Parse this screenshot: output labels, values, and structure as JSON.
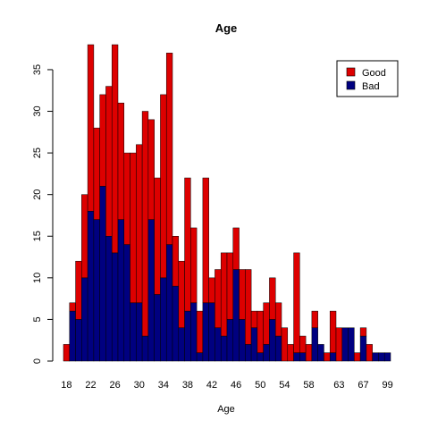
{
  "chart_data": {
    "type": "bar",
    "stacked": true,
    "title": "Age",
    "xlabel": "Age",
    "ylabel": "",
    "ylim": [
      0,
      38
    ],
    "y_ticks": [
      0,
      5,
      10,
      15,
      20,
      25,
      30,
      35
    ],
    "x_tick_labels": [
      "18",
      "22",
      "26",
      "30",
      "34",
      "38",
      "42",
      "46",
      "50",
      "54",
      "58",
      "63",
      "67",
      "99"
    ],
    "categories": [
      "18",
      "19",
      "20",
      "21",
      "22",
      "23",
      "24",
      "25",
      "26",
      "27",
      "28",
      "29",
      "30",
      "31",
      "32",
      "33",
      "34",
      "35",
      "36",
      "37",
      "38",
      "39",
      "40",
      "41",
      "42",
      "43",
      "44",
      "45",
      "46",
      "47",
      "48",
      "49",
      "50",
      "51",
      "52",
      "53",
      "54",
      "55",
      "56",
      "57",
      "58",
      "59",
      "60",
      "61",
      "62",
      "63",
      "64",
      "65",
      "66",
      "67",
      "68",
      "69",
      "70",
      "99"
    ],
    "legend_position": "top-right",
    "series": [
      {
        "name": "Bad",
        "color": "#000080",
        "values": [
          0,
          6,
          5,
          10,
          18,
          17,
          21,
          15,
          13,
          17,
          14,
          7,
          7,
          3,
          17,
          8,
          10,
          14,
          9,
          4,
          6,
          7,
          1,
          7,
          7,
          4,
          3,
          5,
          11,
          5,
          2,
          4,
          1,
          2,
          5,
          3,
          0,
          0,
          1,
          1,
          0,
          4,
          2,
          0,
          1,
          0,
          4,
          4,
          0,
          3,
          0,
          1,
          1,
          1
        ]
      },
      {
        "name": "Good",
        "color": "#dd0000",
        "values": [
          2,
          1,
          7,
          10,
          20,
          11,
          11,
          18,
          25,
          14,
          11,
          18,
          19,
          27,
          12,
          14,
          22,
          23,
          6,
          8,
          16,
          9,
          5,
          15,
          3,
          7,
          10,
          8,
          5,
          6,
          9,
          2,
          5,
          5,
          5,
          4,
          4,
          2,
          12,
          2,
          2,
          2,
          0,
          1,
          5,
          4,
          0,
          0,
          1,
          1,
          2,
          0,
          0,
          0
        ]
      }
    ]
  }
}
